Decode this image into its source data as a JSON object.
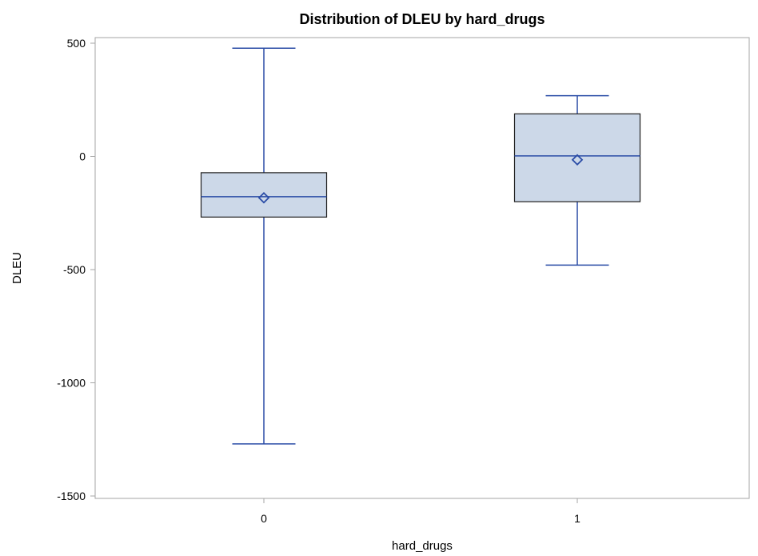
{
  "chart_data": {
    "type": "box",
    "title": "Distribution of DLEU by hard_drugs",
    "xlabel": "hard_drugs",
    "ylabel": "DLEU",
    "categories": [
      "0",
      "1"
    ],
    "ylim": [
      -1500,
      520
    ],
    "yticks": [
      500,
      0,
      -500,
      -1000,
      -1500
    ],
    "ytick_labels": [
      "500",
      "0",
      "-500",
      "-1000",
      "-1500"
    ],
    "grid": false,
    "legend": "none",
    "boxes": [
      {
        "category": "0",
        "min": -1270,
        "q1": -268,
        "median": -178,
        "mean": -183,
        "q3": -72,
        "max": 478
      },
      {
        "category": "1",
        "min": -480,
        "q1": -200,
        "median": 2,
        "mean": -15,
        "q3": 188,
        "max": 268
      }
    ],
    "colors": {
      "box_fill": "#ccd8e8",
      "box_edge": "#1f1f1f",
      "line": "#2a4ca6",
      "frame": "#a6a6a6"
    }
  }
}
